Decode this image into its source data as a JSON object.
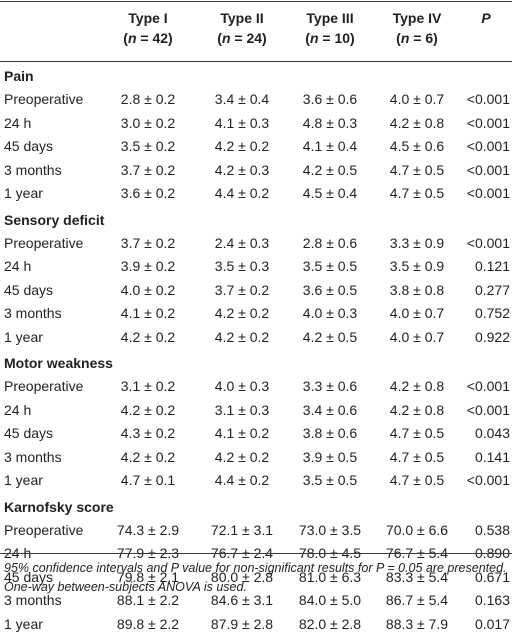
{
  "header": {
    "columns": [
      {
        "title": "Type I",
        "n": "42"
      },
      {
        "title": "Type II",
        "n": "24"
      },
      {
        "title": "Type III",
        "n": "10"
      },
      {
        "title": "Type IV",
        "n": "6"
      }
    ],
    "p_label": "P",
    "n_symbol": "n",
    "eq": " = "
  },
  "sections": [
    {
      "title": "Pain",
      "rows": [
        {
          "label": "Preoperative",
          "values": [
            "2.8 ± 0.2",
            "3.4 ± 0.4",
            "3.6 ± 0.6",
            "4.0 ± 0.7",
            "<0.001"
          ]
        },
        {
          "label": "24 h",
          "values": [
            "3.0 ± 0.2",
            "4.1 ± 0.3",
            "4.8 ± 0.3",
            "4.2 ± 0.8",
            "<0.001"
          ]
        },
        {
          "label": "45 days",
          "values": [
            "3.5 ± 0.2",
            "4.2 ± 0.2",
            "4.1 ± 0.4",
            "4.5 ± 0.6",
            "<0.001"
          ]
        },
        {
          "label": "3 months",
          "values": [
            "3.7 ± 0.2",
            "4.2 ± 0.3",
            "4.2 ± 0.5",
            "4.7 ± 0.5",
            "<0.001"
          ]
        },
        {
          "label": "1 year",
          "values": [
            "3.6 ± 0.2",
            "4.4 ± 0.2",
            "4.5 ± 0.4",
            "4.7 ± 0.5",
            "<0.001"
          ]
        }
      ]
    },
    {
      "title": "Sensory deficit",
      "rows": [
        {
          "label": "Preoperative",
          "values": [
            "3.7 ± 0.2",
            "2.4 ± 0.3",
            "2.8 ± 0.6",
            "3.3 ± 0.9",
            "<0.001"
          ]
        },
        {
          "label": "24 h",
          "values": [
            "3.9 ± 0.2",
            "3.5 ± 0.3",
            "3.5 ± 0.5",
            "3.5 ± 0.9",
            "0.121"
          ]
        },
        {
          "label": "45 days",
          "values": [
            "4.0 ± 0.2",
            "3.7 ± 0.2",
            "3.6 ± 0.5",
            "3.8 ± 0.8",
            "0.277"
          ]
        },
        {
          "label": "3 months",
          "values": [
            "4.1 ± 0.2",
            "4.2 ± 0.2",
            "4.0 ± 0.3",
            "4.0 ± 0.7",
            "0.752"
          ]
        },
        {
          "label": "1 year",
          "values": [
            "4.2 ± 0.2",
            "4.2 ± 0.2",
            "4.2 ± 0.5",
            "4.0 ± 0.7",
            "0.922"
          ]
        }
      ]
    },
    {
      "title": "Motor weakness",
      "rows": [
        {
          "label": "Preoperative",
          "values": [
            "3.1 ± 0.2",
            "4.0 ± 0.3",
            "3.3 ± 0.6",
            "4.2 ± 0.8",
            "<0.001"
          ]
        },
        {
          "label": "24 h",
          "values": [
            "4.2 ± 0.2",
            "3.1 ± 0.3",
            "3.4 ± 0.6",
            "4.2 ± 0.8",
            "<0.001"
          ]
        },
        {
          "label": "45 days",
          "values": [
            "4.3 ± 0.2",
            "4.1 ± 0.2",
            "3.8 ± 0.6",
            "4.7 ± 0.5",
            "0.043"
          ]
        },
        {
          "label": "3 months",
          "values": [
            "4.2 ± 0.2",
            "4.2 ± 0.2",
            "3.9 ± 0.5",
            "4.7 ± 0.5",
            "0.141"
          ]
        },
        {
          "label": "1 year",
          "values": [
            "4.7 ± 0.1",
            "4.4 ± 0.2",
            "3.5 ± 0.5",
            "4.7 ± 0.5",
            "<0.001"
          ]
        }
      ]
    },
    {
      "title": "Karnofsky score",
      "rows": [
        {
          "label": "Preoperative",
          "values": [
            "74.3 ± 2.9",
            "72.1 ± 3.1",
            "73.0 ± 3.5",
            "70.0 ± 6.6",
            "0.538"
          ]
        },
        {
          "label": "24 h",
          "values": [
            "77.9 ± 2.3",
            "76.7 ± 2.4",
            "78.0 ± 4.5",
            "76.7 ± 5.4",
            "0.890"
          ]
        },
        {
          "label": "45 days",
          "values": [
            "79.8 ± 2.1",
            "80.0 ± 2.8",
            "81.0 ± 6.3",
            "83.3 ± 5.4",
            "0.671"
          ]
        },
        {
          "label": "3 months",
          "values": [
            "88.1 ± 2.2",
            "84.6 ± 3.1",
            "84.0 ± 5.0",
            "86.7 ± 5.4",
            "0.163"
          ]
        },
        {
          "label": "1 year",
          "values": [
            "89.8 ± 2.2",
            "87.9 ± 2.8",
            "82.0 ± 2.8",
            "88.3 ± 7.9",
            "0.017"
          ]
        }
      ]
    }
  ],
  "footnote": "95% confidence intervals and P value for non-significant results for P = 0.05 are presented. One-way between-subjects ANOVA is used."
}
